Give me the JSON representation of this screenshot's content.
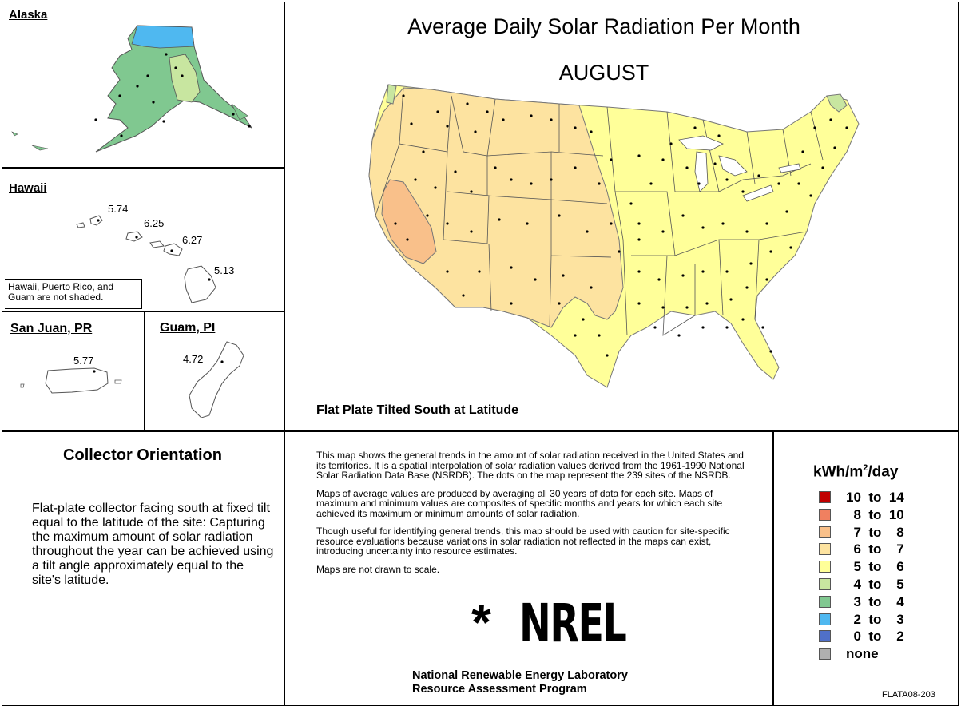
{
  "header": {
    "title": "Average Daily Solar Radiation Per Month",
    "month": "AUGUST",
    "subtitle": "Flat Plate Tilted South at Latitude"
  },
  "insets": {
    "alaska": {
      "title": "Alaska"
    },
    "hawaii": {
      "title": "Hawaii",
      "values": [
        "5.74",
        "6.25",
        "6.27",
        "5.13"
      ],
      "note": "Hawaii, Puerto Rico, and Guam are not shaded."
    },
    "san_juan": {
      "title": "San Juan, PR",
      "value": "5.77"
    },
    "guam": {
      "title": "Guam, PI",
      "value": "4.72"
    }
  },
  "orientation": {
    "title": "Collector Orientation",
    "text": "Flat-plate collector facing south at fixed tilt equal to the latitude of the site:  Capturing the maximum amount of solar radiation throughout the year can be achieved using a tilt angle approximately equal to the site's latitude."
  },
  "description": {
    "p1": "This map shows the general trends in the amount of solar radiation received in the United States and its territories.  It is a spatial interpolation of solar radiation values derived from the 1961-1990 National Solar Radiation Data Base (NSRDB).  The dots on the map represent the 239 sites of the NSRDB.",
    "p2": "Maps of average values are produced by averaging all 30 years of data for each site.  Maps of maximum and minimum values are composites of specific months and years for which each site achieved its maximum or minimum amounts of solar radiation.",
    "p3": "Though useful for identifying general trends, this map should be used with caution for site-specific resource evaluations because variations in solar radiation not reflected in the maps can exist, introducing uncertainty into resource estimates.",
    "p4": "Maps are not drawn to scale."
  },
  "logo": {
    "star": "*",
    "text": "NREL"
  },
  "lab": {
    "line1": "National Renewable Energy Laboratory",
    "line2": "Resource Assessment Program"
  },
  "legend": {
    "title_main": "kWh/m",
    "title_sup": "2",
    "title_rest": "/day",
    "items": [
      {
        "label": "10  to  14",
        "color": "#c00000"
      },
      {
        "label": "  8  to  10",
        "color": "#f08060"
      },
      {
        "label": "  7  to    8",
        "color": "#f9c08a"
      },
      {
        "label": "  6  to    7",
        "color": "#fde3a0"
      },
      {
        "label": "  5  to    6",
        "color": "#ffff99"
      },
      {
        "label": "  4  to    5",
        "color": "#c8e6a0"
      },
      {
        "label": "  3  to    4",
        "color": "#80c890"
      },
      {
        "label": "  2  to    3",
        "color": "#4fb8f0"
      },
      {
        "label": "  0  to    2",
        "color": "#5070c8"
      },
      {
        "label": "none",
        "color": "#b0b0b0"
      }
    ]
  },
  "code": "FLATA08-203"
}
